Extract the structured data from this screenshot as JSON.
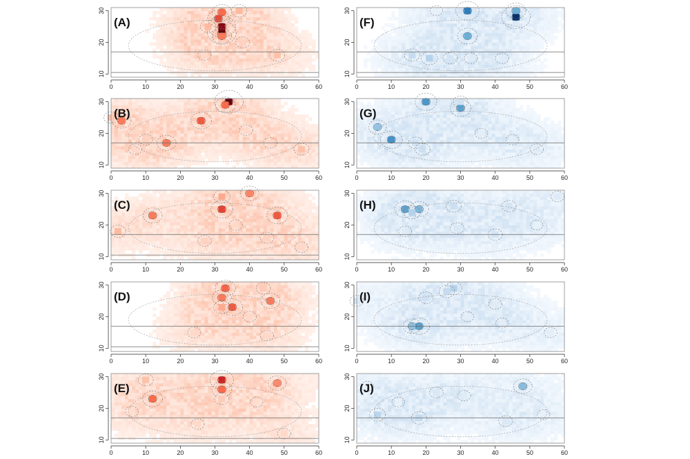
{
  "chart_data": [
    {
      "type": "heatmap",
      "label": "(A)",
      "palette": "reds",
      "x_ticks": [
        "0",
        "10",
        "20",
        "30",
        "40",
        "50",
        "60"
      ],
      "y_ticks": [
        "10",
        "20",
        "30"
      ],
      "xlim": [
        0,
        60
      ],
      "ylim": [
        9,
        31
      ],
      "hlines": [
        17,
        10.5
      ],
      "hotspots": [
        [
          32,
          23,
          1.0
        ],
        [
          32,
          25,
          0.92
        ],
        [
          31,
          27.5,
          0.6
        ],
        [
          32,
          29.5,
          0.5
        ],
        [
          32,
          22,
          0.45
        ],
        [
          28,
          25,
          0.25
        ],
        [
          37,
          30,
          0.25
        ],
        [
          48,
          16,
          0.22
        ],
        [
          38,
          20,
          0.15
        ],
        [
          27,
          16,
          0.12
        ]
      ]
    },
    {
      "type": "heatmap",
      "label": "(B)",
      "palette": "reds",
      "x_ticks": [
        "0",
        "10",
        "20",
        "30",
        "40",
        "50",
        "60"
      ],
      "y_ticks": [
        "10",
        "20",
        "30"
      ],
      "xlim": [
        0,
        60
      ],
      "ylim": [
        9,
        31
      ],
      "hlines": [
        17
      ],
      "hotspots": [
        [
          34,
          30,
          1.0
        ],
        [
          26,
          24,
          0.55
        ],
        [
          3,
          24,
          0.45
        ],
        [
          16,
          17,
          0.45
        ],
        [
          33,
          29,
          0.5
        ],
        [
          0,
          25,
          0.2
        ],
        [
          10,
          18,
          0.15
        ],
        [
          55,
          15,
          0.22
        ],
        [
          46,
          17,
          0.12
        ],
        [
          7,
          15,
          0.12
        ],
        [
          39,
          21,
          0.12
        ]
      ]
    },
    {
      "type": "heatmap",
      "label": "(C)",
      "palette": "reds",
      "x_ticks": [
        "0",
        "10",
        "20",
        "30",
        "40",
        "50",
        "60"
      ],
      "y_ticks": [
        "10",
        "20",
        "30"
      ],
      "xlim": [
        0,
        60
      ],
      "ylim": [
        9,
        31
      ],
      "hlines": [
        17,
        10.5
      ],
      "hotspots": [
        [
          32,
          25,
          0.62
        ],
        [
          48,
          23,
          0.55
        ],
        [
          12,
          23,
          0.45
        ],
        [
          32,
          29,
          0.3
        ],
        [
          40,
          30,
          0.42
        ],
        [
          2,
          18,
          0.25
        ],
        [
          27,
          15,
          0.15
        ],
        [
          45,
          16,
          0.15
        ],
        [
          55,
          13,
          0.12
        ],
        [
          36,
          20,
          0.12
        ]
      ]
    },
    {
      "type": "heatmap",
      "label": "(D)",
      "palette": "reds",
      "x_ticks": [
        "0",
        "10",
        "20",
        "30",
        "40",
        "50",
        "60"
      ],
      "y_ticks": [
        "10",
        "20",
        "30"
      ],
      "xlim": [
        0,
        60
      ],
      "ylim": [
        9,
        31
      ],
      "hlines": [
        17,
        10.5
      ],
      "hotspots": [
        [
          33,
          29,
          0.52
        ],
        [
          32,
          26,
          0.45
        ],
        [
          35,
          23,
          0.55
        ],
        [
          32,
          23,
          0.3
        ],
        [
          46,
          25,
          0.45
        ],
        [
          44,
          29,
          0.18
        ],
        [
          40,
          20,
          0.12
        ],
        [
          24,
          15,
          0.12
        ],
        [
          45,
          14,
          0.12
        ]
      ]
    },
    {
      "type": "heatmap",
      "label": "(E)",
      "palette": "reds",
      "x_ticks": [
        "0",
        "10",
        "20",
        "30",
        "40",
        "50",
        "60"
      ],
      "y_ticks": [
        "10",
        "20",
        "30"
      ],
      "xlim": [
        0,
        60
      ],
      "ylim": [
        9,
        31
      ],
      "hlines": [
        17,
        10.5
      ],
      "hotspots": [
        [
          32,
          29,
          0.72
        ],
        [
          32,
          26,
          0.5
        ],
        [
          12,
          23,
          0.5
        ],
        [
          48,
          28,
          0.4
        ],
        [
          10,
          29,
          0.22
        ],
        [
          32,
          23,
          0.18
        ],
        [
          50,
          12,
          0.12
        ],
        [
          25,
          15,
          0.12
        ],
        [
          6,
          19,
          0.1
        ],
        [
          42,
          22,
          0.1
        ]
      ]
    },
    {
      "type": "heatmap",
      "label": "(F)",
      "palette": "blues",
      "x_ticks": [
        "0",
        "10",
        "20",
        "30",
        "40",
        "50",
        "60"
      ],
      "y_ticks": [
        "10",
        "20",
        "30"
      ],
      "xlim": [
        0,
        60
      ],
      "ylim": [
        9,
        31
      ],
      "hlines": [
        17,
        10.5
      ],
      "hotspots": [
        [
          46,
          28,
          1.0
        ],
        [
          32,
          30,
          0.7
        ],
        [
          46,
          30,
          0.5
        ],
        [
          32,
          22,
          0.5
        ],
        [
          21,
          15,
          0.3
        ],
        [
          16,
          16,
          0.25
        ],
        [
          27,
          15,
          0.18
        ],
        [
          33,
          15,
          0.12
        ],
        [
          42,
          15,
          0.12
        ],
        [
          23,
          30,
          0.08
        ]
      ]
    },
    {
      "type": "heatmap",
      "label": "(G)",
      "palette": "blues",
      "x_ticks": [
        "0",
        "10",
        "20",
        "30",
        "40",
        "50",
        "60"
      ],
      "y_ticks": [
        "10",
        "20",
        "30"
      ],
      "xlim": [
        0,
        60
      ],
      "ylim": [
        9,
        31
      ],
      "hlines": [
        17
      ],
      "hotspots": [
        [
          20,
          30,
          0.6
        ],
        [
          30,
          28,
          0.55
        ],
        [
          10,
          18,
          0.62
        ],
        [
          6,
          22,
          0.38
        ],
        [
          17,
          17,
          0.2
        ],
        [
          19,
          15,
          0.22
        ],
        [
          52,
          15,
          0.12
        ],
        [
          30,
          30,
          0.2
        ],
        [
          36,
          20,
          0.1
        ],
        [
          45,
          18,
          0.1
        ]
      ]
    },
    {
      "type": "heatmap",
      "label": "(H)",
      "palette": "blues",
      "x_ticks": [
        "0",
        "10",
        "20",
        "30",
        "40",
        "50",
        "60"
      ],
      "y_ticks": [
        "10",
        "20",
        "30"
      ],
      "xlim": [
        0,
        60
      ],
      "ylim": [
        9,
        31
      ],
      "hlines": [
        17
      ],
      "hotspots": [
        [
          14,
          25,
          0.55
        ],
        [
          18,
          25,
          0.45
        ],
        [
          16,
          24,
          0.3
        ],
        [
          28,
          26,
          0.22
        ],
        [
          44,
          26,
          0.18
        ],
        [
          40,
          17,
          0.18
        ],
        [
          29,
          19,
          0.15
        ],
        [
          14,
          18,
          0.12
        ],
        [
          58,
          29,
          0.12
        ],
        [
          52,
          20,
          0.08
        ]
      ]
    },
    {
      "type": "heatmap",
      "label": "(I)",
      "palette": "blues",
      "x_ticks": [
        "0",
        "10",
        "20",
        "30",
        "40",
        "50",
        "60"
      ],
      "y_ticks": [
        "10",
        "20",
        "30"
      ],
      "xlim": [
        0,
        60
      ],
      "ylim": [
        9,
        31
      ],
      "hlines": [
        17
      ],
      "hotspots": [
        [
          18,
          17,
          0.55
        ],
        [
          16,
          17,
          0.4
        ],
        [
          28,
          29,
          0.3
        ],
        [
          26,
          28,
          0.25
        ],
        [
          20,
          26,
          0.2
        ],
        [
          40,
          24,
          0.12
        ],
        [
          0,
          25,
          0.15
        ],
        [
          42,
          18,
          0.1
        ],
        [
          56,
          15,
          0.1
        ],
        [
          32,
          20,
          0.1
        ]
      ]
    },
    {
      "type": "heatmap",
      "label": "(J)",
      "palette": "blues",
      "x_ticks": [
        "0",
        "10",
        "20",
        "30",
        "40",
        "50",
        "60"
      ],
      "y_ticks": [
        "10",
        "20",
        "30"
      ],
      "xlim": [
        0,
        60
      ],
      "ylim": [
        9,
        31
      ],
      "hlines": [
        17
      ],
      "hotspots": [
        [
          48,
          27,
          0.42
        ],
        [
          6,
          18,
          0.28
        ],
        [
          18,
          17,
          0.25
        ],
        [
          23,
          25,
          0.15
        ],
        [
          31,
          24,
          0.12
        ],
        [
          43,
          16,
          0.15
        ],
        [
          3,
          27,
          0.08
        ],
        [
          54,
          18,
          0.08
        ],
        [
          12,
          22,
          0.08
        ]
      ]
    }
  ]
}
